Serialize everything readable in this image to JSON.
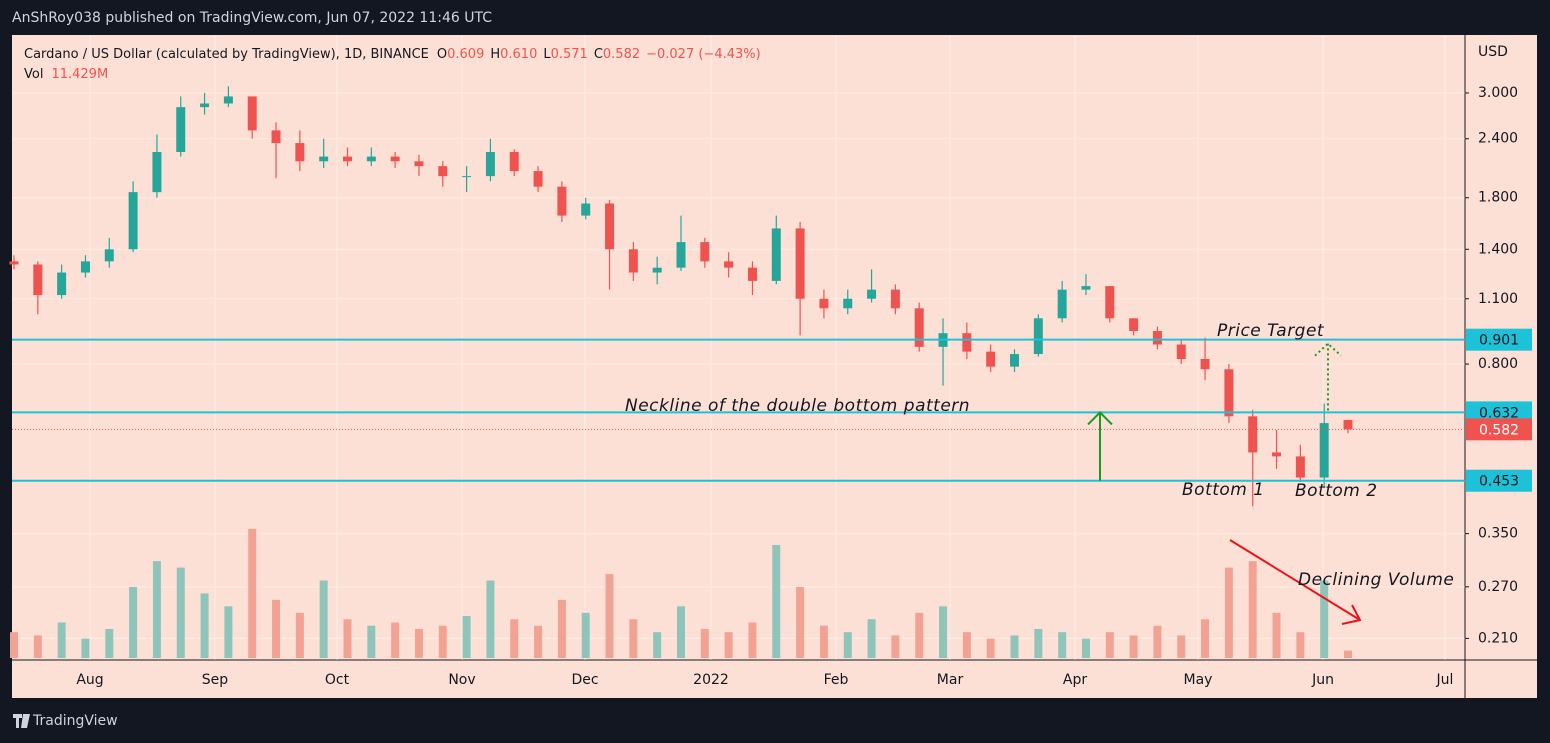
{
  "chart_data": {
    "type": "candlestick",
    "published": "AnShRoy038 published on TradingView.com, Jun 07, 2022 11:46 UTC",
    "symbol": "Cardano / US Dollar (calculated by TradingView), 1D, BINANCE",
    "header_labels": [
      "O",
      "H",
      "L",
      "C"
    ],
    "header_values": [
      "0.609",
      "0.610",
      "0.571",
      "0.582",
      "−0.027 (−4.43%)"
    ],
    "volume_label": "Vol",
    "volume_value_label": "11.429M",
    "currency": "USD",
    "brand": "TradingView",
    "log_scale": true,
    "grid": true,
    "up_color": "#26a69a",
    "down_color": "#ef5350",
    "up_volume_color": "#8fc4bb",
    "down_volume_color": "#f2a293",
    "background": "#fde0d5",
    "level_color": "#1ec2d8",
    "ylim": [
      0.189,
      3.98
    ],
    "yticks": [
      {
        "value": 3,
        "label": "3.000"
      },
      {
        "value": 2.4,
        "label": "2.400"
      },
      {
        "value": 1.8,
        "label": "1.800"
      },
      {
        "value": 1.4,
        "label": "1.400"
      },
      {
        "value": 1.1,
        "label": "1.100"
      },
      {
        "value": 0.8,
        "label": "0.800"
      },
      {
        "value": 0.35,
        "label": "0.350"
      },
      {
        "value": 0.27,
        "label": "0.270"
      },
      {
        "value": 0.21,
        "label": "0.210"
      }
    ],
    "vlim": [
      0,
      240
    ],
    "xticks": [
      "Aug",
      "Sep",
      "Oct",
      "Nov",
      "Dec",
      "2022",
      "Feb",
      "Mar",
      "Apr",
      "May",
      "Jun",
      "Jul"
    ],
    "open": [
      1.32,
      1.3,
      1.12,
      1.25,
      1.32,
      1.4,
      1.85,
      2.25,
      2.8,
      2.85,
      2.95,
      2.5,
      2.35,
      2.15,
      2.2,
      2.15,
      2.2,
      2.15,
      2.1,
      2.0,
      2.0,
      2.25,
      2.05,
      1.9,
      1.65,
      1.75,
      1.4,
      1.25,
      1.28,
      1.45,
      1.32,
      1.28,
      1.2,
      1.55,
      1.1,
      1.05,
      1.1,
      1.15,
      1.05,
      0.87,
      0.93,
      0.85,
      0.79,
      0.84,
      1.0,
      1.15,
      1.17,
      1.0,
      0.94,
      0.88,
      0.82,
      0.78,
      0.62,
      0.52,
      0.51,
      0.46,
      0.609
    ],
    "high": [
      1.36,
      1.32,
      1.3,
      1.36,
      1.48,
      1.95,
      2.45,
      2.95,
      3.0,
      3.1,
      2.95,
      2.6,
      2.5,
      2.4,
      2.3,
      2.3,
      2.25,
      2.22,
      2.15,
      2.1,
      2.4,
      2.28,
      2.1,
      1.95,
      1.8,
      1.78,
      1.45,
      1.35,
      1.65,
      1.48,
      1.38,
      1.32,
      1.65,
      1.6,
      1.15,
      1.15,
      1.27,
      1.18,
      1.08,
      1.0,
      0.98,
      0.88,
      0.86,
      1.02,
      1.2,
      1.24,
      1.17,
      1.0,
      0.96,
      0.9,
      0.91,
      0.8,
      0.64,
      0.58,
      0.54,
      0.66,
      0.61
    ],
    "low": [
      1.27,
      1.02,
      1.1,
      1.22,
      1.28,
      1.38,
      1.8,
      2.2,
      2.7,
      2.8,
      2.4,
      1.98,
      2.05,
      2.08,
      2.1,
      2.1,
      2.08,
      2.0,
      1.9,
      1.85,
      1.95,
      2.0,
      1.85,
      1.6,
      1.62,
      1.15,
      1.2,
      1.18,
      1.26,
      1.28,
      1.22,
      1.12,
      1.18,
      0.92,
      1.0,
      1.02,
      1.08,
      1.02,
      0.85,
      0.72,
      0.82,
      0.77,
      0.77,
      0.83,
      0.98,
      1.12,
      0.98,
      0.92,
      0.86,
      0.8,
      0.74,
      0.6,
      0.4,
      0.48,
      0.45,
      0.44,
      0.571
    ],
    "close": [
      1.3,
      1.12,
      1.25,
      1.32,
      1.4,
      1.85,
      2.25,
      2.8,
      2.85,
      2.95,
      2.5,
      2.35,
      2.15,
      2.2,
      2.15,
      2.2,
      2.15,
      2.1,
      2.0,
      2.0,
      2.25,
      2.05,
      1.9,
      1.65,
      1.75,
      1.4,
      1.25,
      1.28,
      1.45,
      1.32,
      1.28,
      1.2,
      1.55,
      1.1,
      1.05,
      1.1,
      1.15,
      1.05,
      0.87,
      0.93,
      0.85,
      0.79,
      0.84,
      1.0,
      1.15,
      1.17,
      1.0,
      0.94,
      0.88,
      0.82,
      0.78,
      0.62,
      0.52,
      0.51,
      0.46,
      0.6,
      0.582
    ],
    "volume": [
      40,
      35,
      55,
      30,
      45,
      110,
      150,
      140,
      100,
      80,
      200,
      90,
      70,
      120,
      60,
      50,
      55,
      45,
      50,
      65,
      120,
      60,
      50,
      90,
      70,
      130,
      60,
      40,
      80,
      45,
      40,
      55,
      175,
      110,
      50,
      40,
      60,
      35,
      70,
      80,
      40,
      30,
      35,
      45,
      40,
      30,
      40,
      35,
      50,
      35,
      60,
      140,
      150,
      70,
      40,
      120,
      11.429
    ],
    "levels": [
      0.901,
      0.632,
      0.453
    ],
    "last_price": 0.582,
    "annotations": [
      "Neckline of the double bottom pattern",
      "Price Target",
      "Bottom 1",
      "Bottom 2",
      "Declining Volume"
    ]
  }
}
